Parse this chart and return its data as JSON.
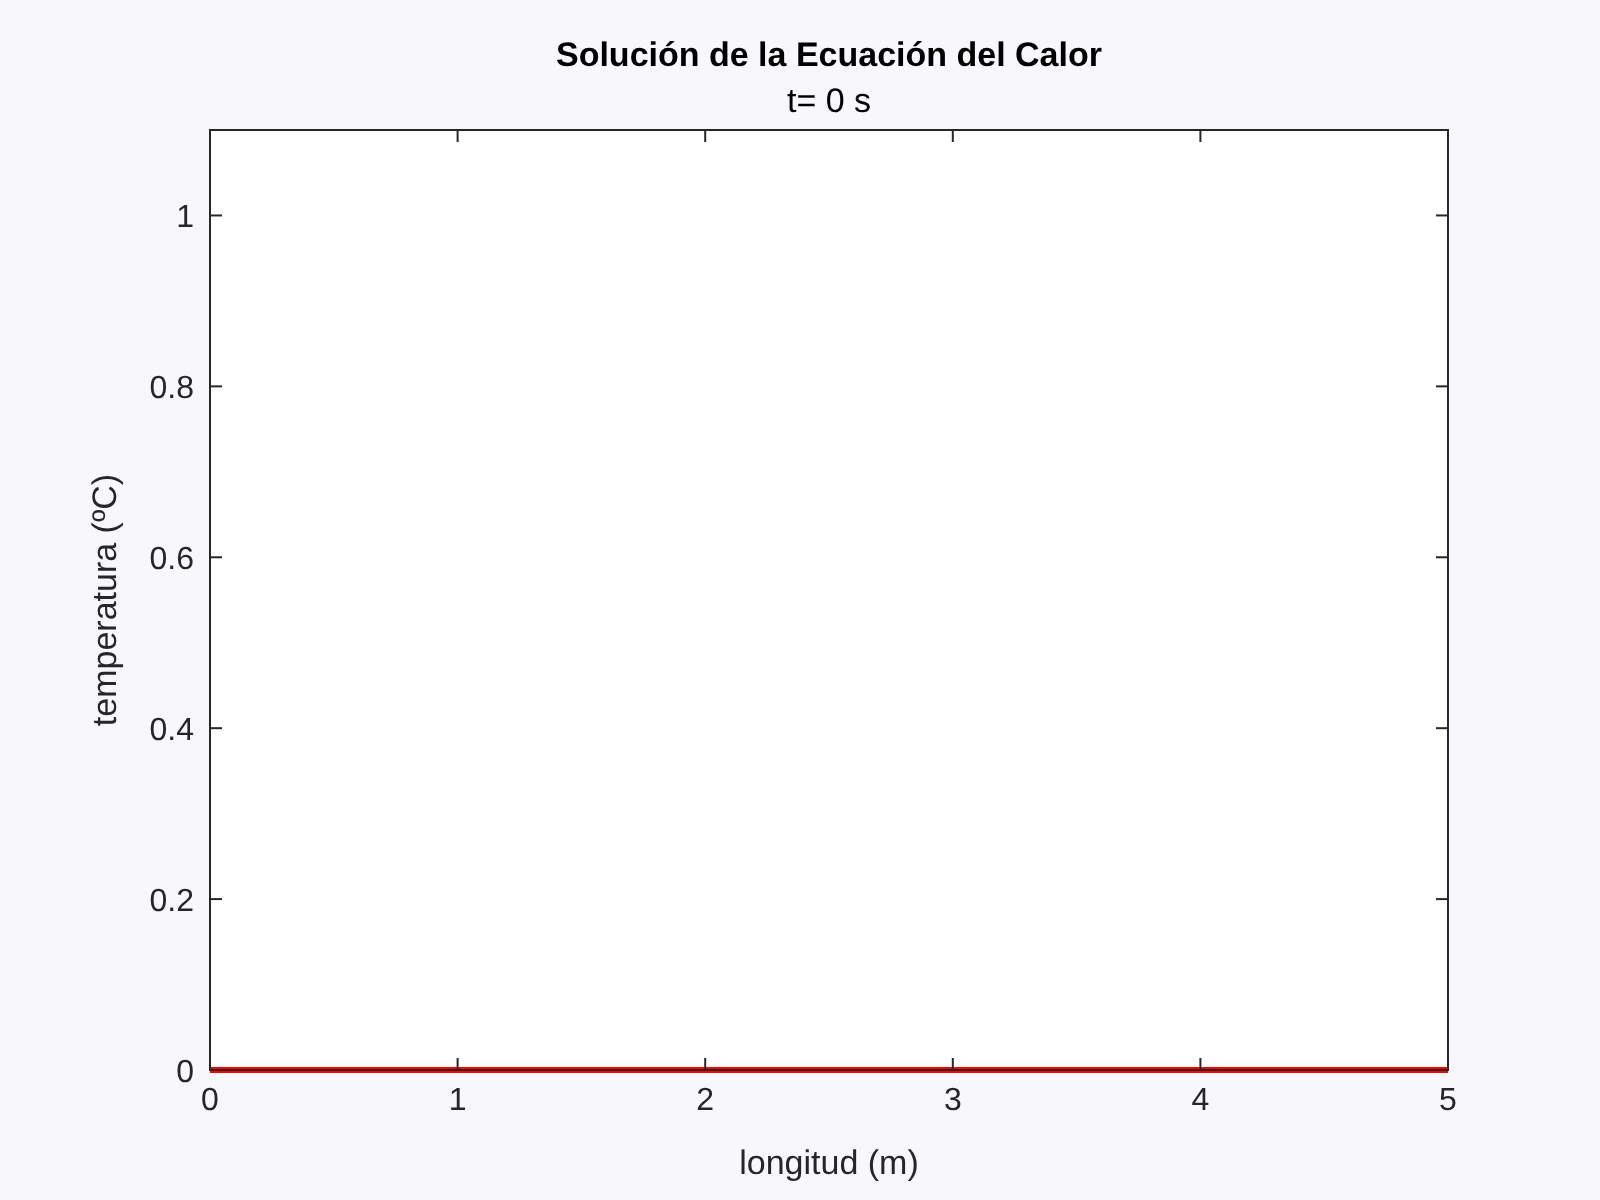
{
  "chart_data": {
    "type": "line",
    "title": "Solución de la Ecuación del Calor",
    "subtitle": "t= 0 s",
    "xlabel": "longitud (m)",
    "ylabel": "temperatura (ºC)",
    "x": [
      0,
      5
    ],
    "series": [
      {
        "color": "#ff0000",
        "values": [
          0,
          0
        ]
      }
    ],
    "xlim": [
      0,
      5
    ],
    "ylim": [
      0,
      1.1
    ],
    "xticks": [
      0,
      1,
      2,
      3,
      4,
      5
    ],
    "yticks": [
      0,
      0.2,
      0.4,
      0.6,
      0.8,
      1
    ],
    "grid": false
  }
}
